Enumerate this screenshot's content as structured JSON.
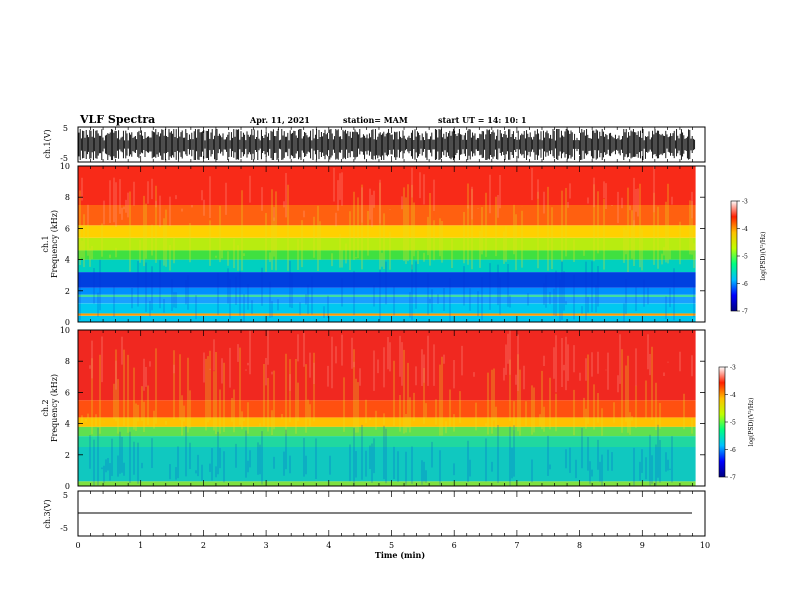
{
  "header": {
    "title": "VLF Spectra",
    "date": "Apr. 11, 2021",
    "station": "station= MAM",
    "start": "start  UT  =   14: 10: 1"
  },
  "chart_data": [
    {
      "type": "line",
      "ylabel": "ch.1(V)",
      "ylim": [
        -5,
        5
      ],
      "yticklabels": [
        "5",
        "-5"
      ],
      "xlim": [
        0,
        10
      ],
      "series_note": "dense waveform"
    },
    {
      "type": "heatmap",
      "ylabel_line1": "ch.1",
      "ylabel_line2": "Frequency (kHz)",
      "ylim": [
        0,
        10
      ],
      "yticklabels": [
        "0",
        "2",
        "4",
        "6",
        "8",
        "10"
      ],
      "xlim": [
        0,
        10
      ],
      "colorbar_label": "log(PSD)(V²/Hz)",
      "colorbar_range": [
        -7,
        -3
      ],
      "colorbar_ticks": [
        "-3",
        "-4",
        "-5",
        "-6",
        "-7"
      ],
      "bands": [
        {
          "from": 0.0,
          "to": 0.4,
          "color": "#00c8f0"
        },
        {
          "from": 0.4,
          "to": 0.55,
          "color": "#ff9a00"
        },
        {
          "from": 0.55,
          "to": 1.2,
          "color": "#00c8f0"
        },
        {
          "from": 1.2,
          "to": 1.6,
          "color": "#1aa0ff"
        },
        {
          "from": 1.6,
          "to": 1.75,
          "color": "#40e0a0"
        },
        {
          "from": 1.75,
          "to": 2.2,
          "color": "#0090ff"
        },
        {
          "from": 2.2,
          "to": 3.2,
          "color": "#0040e0"
        },
        {
          "from": 3.2,
          "to": 4.0,
          "color": "#00d0c0"
        },
        {
          "from": 4.0,
          "to": 4.6,
          "color": "#40e040"
        },
        {
          "from": 4.6,
          "to": 5.4,
          "color": "#b8ec10"
        },
        {
          "from": 5.4,
          "to": 6.2,
          "color": "#ffd000"
        },
        {
          "from": 6.2,
          "to": 7.5,
          "color": "#ff6010"
        },
        {
          "from": 7.5,
          "to": 10.0,
          "color": "#f82a18"
        }
      ]
    },
    {
      "type": "heatmap",
      "ylabel_line1": "ch.2",
      "ylabel_line2": "Frequency (kHz)",
      "ylim": [
        0,
        10
      ],
      "yticklabels": [
        "0",
        "2",
        "4",
        "6",
        "8",
        "10"
      ],
      "xlim": [
        0,
        10
      ],
      "colorbar_label": "log(PSD)(V²/Hz)",
      "colorbar_range": [
        -7,
        -3
      ],
      "colorbar_ticks": [
        "-3",
        "-4",
        "-5",
        "-6",
        "-7"
      ],
      "bands": [
        {
          "from": 0.0,
          "to": 0.3,
          "color": "#80e040"
        },
        {
          "from": 0.3,
          "to": 2.5,
          "color": "#10c8c0"
        },
        {
          "from": 2.5,
          "to": 3.2,
          "color": "#20d8a0"
        },
        {
          "from": 3.2,
          "to": 3.8,
          "color": "#60e050"
        },
        {
          "from": 3.8,
          "to": 4.4,
          "color": "#ffc000"
        },
        {
          "from": 4.4,
          "to": 5.5,
          "color": "#ff5010"
        },
        {
          "from": 5.5,
          "to": 10.0,
          "color": "#f02820"
        }
      ]
    },
    {
      "type": "line",
      "ylabel": "ch.3(V)",
      "ylim": [
        -5,
        5
      ],
      "yticklabels": [
        "5",
        "-5"
      ],
      "xlim": [
        0,
        10
      ],
      "values_note": "flat line near 0"
    }
  ],
  "xaxis": {
    "label": "Time (min)",
    "ticks": [
      "0",
      "1",
      "2",
      "3",
      "4",
      "5",
      "6",
      "7",
      "8",
      "9",
      "10"
    ]
  },
  "colors": {
    "cb_stops": [
      "#000080",
      "#0000ff",
      "#00c0ff",
      "#00ff80",
      "#c0ff00",
      "#ffc000",
      "#ff2000",
      "#ffffff"
    ]
  }
}
